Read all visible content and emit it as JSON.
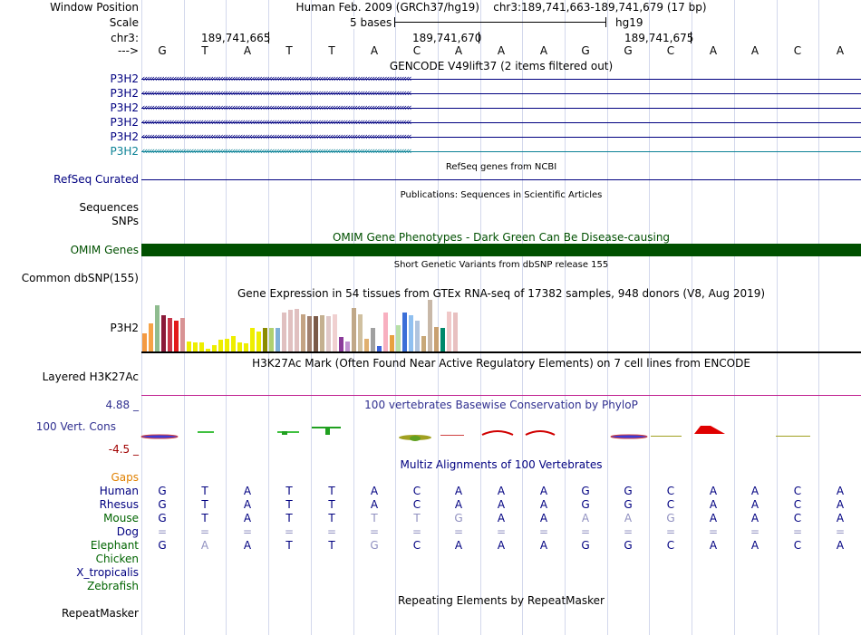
{
  "header": {
    "window_position_label": "Window Position",
    "assembly": "Human Feb. 2009 (GRCh37/hg19)",
    "position": "chr3:189,741,663-189,741,679 (17 bp)",
    "scale_label": "Scale",
    "scale_text": "5 bases",
    "db": "hg19",
    "chrom_label": "chr3:",
    "coords": [
      "189,741,665",
      "189,741,670",
      "189,741,675"
    ],
    "strand_label": "--->"
  },
  "sequence": [
    "G",
    "T",
    "A",
    "T",
    "T",
    "A",
    "C",
    "A",
    "A",
    "A",
    "G",
    "G",
    "C",
    "A",
    "A",
    "C",
    "A"
  ],
  "gencode": {
    "title": "GENCODE V49lift37 (2 items filtered out)",
    "rows": [
      {
        "label": "P3H2",
        "color": "#000080"
      },
      {
        "label": "P3H2",
        "color": "#000080"
      },
      {
        "label": "P3H2",
        "color": "#000080"
      },
      {
        "label": "P3H2",
        "color": "#000080"
      },
      {
        "label": "P3H2",
        "color": "#000080"
      },
      {
        "label": "P3H2",
        "color": "#0c8296"
      }
    ]
  },
  "refseq": {
    "title": "RefSeq genes from NCBI",
    "label": "RefSeq Curated"
  },
  "publications": {
    "title": "Publications: Sequences in Scientific Articles",
    "label_sequences": "Sequences",
    "label_snps": "SNPs"
  },
  "omim": {
    "title": "OMIM Gene Phenotypes - Dark Green Can Be Disease-causing",
    "label": "OMIM Genes",
    "color": "#005000"
  },
  "dbsnp": {
    "title": "Short Genetic Variants from dbSNP release 155",
    "label": "Common dbSNP(155)"
  },
  "gtex": {
    "title": "Gene Expression in 54 tissues from GTEx RNA-seq of 17382 samples, 948 donors (V8, Aug 2019)",
    "label": "P3H2",
    "bars": [
      {
        "v": 0.35,
        "c": "#f49a42"
      },
      {
        "v": 0.55,
        "c": "#f6a347"
      },
      {
        "v": 0.9,
        "c": "#8fbc8f"
      },
      {
        "v": 0.7,
        "c": "#8b1a3a"
      },
      {
        "v": 0.65,
        "c": "#c8364a"
      },
      {
        "v": 0.6,
        "c": "#e31a1c"
      },
      {
        "v": 0.65,
        "c": "#d89394"
      },
      {
        "v": 0.2,
        "c": "#eeee00"
      },
      {
        "v": 0.18,
        "c": "#eeee00"
      },
      {
        "v": 0.18,
        "c": "#eeee00"
      },
      {
        "v": 0.06,
        "c": "#eeee00"
      },
      {
        "v": 0.12,
        "c": "#eeee00"
      },
      {
        "v": 0.22,
        "c": "#eeee00"
      },
      {
        "v": 0.25,
        "c": "#eeee00"
      },
      {
        "v": 0.3,
        "c": "#eeee00"
      },
      {
        "v": 0.18,
        "c": "#eeee00"
      },
      {
        "v": 0.15,
        "c": "#eeee00"
      },
      {
        "v": 0.45,
        "c": "#eeee00"
      },
      {
        "v": 0.38,
        "c": "#eeee00"
      },
      {
        "v": 0.45,
        "c": "#8b8b00"
      },
      {
        "v": 0.45,
        "c": "#b0d070"
      },
      {
        "v": 0.45,
        "c": "#7fb0d8"
      },
      {
        "v": 0.75,
        "c": "#e0c0c0"
      },
      {
        "v": 0.8,
        "c": "#e0c0c0"
      },
      {
        "v": 0.82,
        "c": "#e0c0c0"
      },
      {
        "v": 0.72,
        "c": "#c4a484"
      },
      {
        "v": 0.68,
        "c": "#a0806e"
      },
      {
        "v": 0.68,
        "c": "#7a5a48"
      },
      {
        "v": 0.7,
        "c": "#c4b090"
      },
      {
        "v": 0.68,
        "c": "#e0c8c8"
      },
      {
        "v": 0.72,
        "c": "#f0d0d0"
      },
      {
        "v": 0.28,
        "c": "#8b3a9a"
      },
      {
        "v": 0.2,
        "c": "#c090d0"
      },
      {
        "v": 0.85,
        "c": "#c0a888"
      },
      {
        "v": 0.72,
        "c": "#d0c0a0"
      },
      {
        "v": 0.25,
        "c": "#e0b070"
      },
      {
        "v": 0.45,
        "c": "#a0a0a0"
      },
      {
        "v": 0.1,
        "c": "#3c64dc"
      },
      {
        "v": 0.75,
        "c": "#f8b0c0"
      },
      {
        "v": 0.32,
        "c": "#e8a040"
      },
      {
        "v": 0.5,
        "c": "#b8e0a8"
      },
      {
        "v": 0.75,
        "c": "#3b6fd8"
      },
      {
        "v": 0.7,
        "c": "#90c0f0"
      },
      {
        "v": 0.6,
        "c": "#b0c4de"
      },
      {
        "v": 0.3,
        "c": "#c8a878"
      },
      {
        "v": 1.0,
        "c": "#c8b8a8"
      },
      {
        "v": 0.48,
        "c": "#c8a070"
      },
      {
        "v": 0.45,
        "c": "#00886a"
      },
      {
        "v": 0.78,
        "c": "#f0c8c8"
      },
      {
        "v": 0.76,
        "c": "#e8c0c0"
      }
    ]
  },
  "h3k27ac": {
    "title": "H3K27Ac Mark (Often Found Near Active Regulatory Elements) on 7 cell lines from ENCODE",
    "label": "Layered H3K27Ac"
  },
  "cons": {
    "title": "100 vertebrates Basewise Conservation by PhyloP",
    "label": "100 Vert. Cons",
    "max": "4.88 _",
    "min": "-4.5 _"
  },
  "multiz": {
    "title": "Multiz Alignments of 100 Vertebrates",
    "gaps_label": "Gaps",
    "species": [
      {
        "name": "Human",
        "color": "#000080",
        "seq": [
          "G",
          "T",
          "A",
          "T",
          "T",
          "A",
          "C",
          "A",
          "A",
          "A",
          "G",
          "G",
          "C",
          "A",
          "A",
          "C",
          "A"
        ]
      },
      {
        "name": "Rhesus",
        "color": "#000080",
        "seq": [
          "G",
          "T",
          "A",
          "T",
          "T",
          "A",
          "C",
          "A",
          "A",
          "A",
          "G",
          "G",
          "C",
          "A",
          "A",
          "C",
          "A"
        ]
      },
      {
        "name": "Mouse",
        "color": "#006400",
        "seq": [
          "G",
          "T",
          "A",
          "T",
          "T",
          "T",
          "T",
          "G",
          "A",
          "A",
          "A",
          "A",
          "G",
          "A",
          "A",
          "C",
          "A"
        ]
      },
      {
        "name": "Dog",
        "color": "#000080",
        "seq": [
          "=",
          "=",
          "=",
          "=",
          "=",
          "=",
          "=",
          "=",
          "=",
          "=",
          "=",
          "=",
          "=",
          "=",
          "=",
          "=",
          "="
        ]
      },
      {
        "name": "Elephant",
        "color": "#006400",
        "seq": [
          "G",
          "A",
          "A",
          "T",
          "T",
          "G",
          "C",
          "A",
          "A",
          "A",
          "G",
          "G",
          "C",
          "A",
          "A",
          "C",
          "A"
        ]
      },
      {
        "name": "Chicken",
        "color": "#006400",
        "seq": []
      },
      {
        "name": "X_tropicalis",
        "color": "#000080",
        "seq": []
      },
      {
        "name": "Zebrafish",
        "color": "#006400",
        "seq": []
      }
    ],
    "mismatch": {
      "Mouse": [
        5,
        6,
        7,
        10,
        11,
        12
      ],
      "Elephant": [
        1,
        5
      ]
    }
  },
  "repeatmasker": {
    "title": "Repeating Elements by RepeatMasker",
    "label": "RepeatMasker"
  },
  "colors": {
    "grid": "#d3d8ec",
    "navy": "#000080",
    "cons_title": "#303090",
    "magenta_line": "#c02090",
    "orange": "#e08000"
  }
}
